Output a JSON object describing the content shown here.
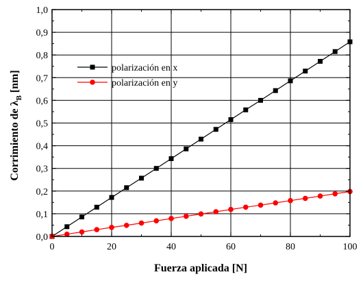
{
  "chart_data": {
    "type": "line",
    "title": "",
    "xlabel": "Fuerza aplicada [N]",
    "ylabel_main": "Corrimiento de λ",
    "ylabel_sub": "B",
    "ylabel_unit": " [nm]",
    "xlim": [
      0,
      100
    ],
    "ylim": [
      0,
      1.0
    ],
    "x_ticks": [
      0,
      20,
      40,
      60,
      80,
      100
    ],
    "x_tick_labels": [
      "0",
      "20",
      "40",
      "60",
      "80",
      "100"
    ],
    "y_ticks": [
      0,
      0.1,
      0.2,
      0.3,
      0.4,
      0.5,
      0.6,
      0.7,
      0.8,
      0.9,
      1.0
    ],
    "y_tick_labels": [
      "0,0",
      "0,1",
      "0,2",
      "0,3",
      "0,4",
      "0,5",
      "0,6",
      "0,7",
      "0,8",
      "0,9",
      "1,0"
    ],
    "grid": true,
    "legend_position": "upper-left",
    "x": [
      0,
      5,
      10,
      15,
      20,
      25,
      30,
      35,
      40,
      45,
      50,
      55,
      60,
      65,
      70,
      75,
      80,
      85,
      90,
      95,
      100
    ],
    "series": [
      {
        "name": "polarización en x",
        "color": "#000000",
        "marker": "square",
        "values": [
          0.0,
          0.043,
          0.086,
          0.129,
          0.172,
          0.215,
          0.257,
          0.3,
          0.343,
          0.386,
          0.429,
          0.472,
          0.515,
          0.558,
          0.6,
          0.643,
          0.686,
          0.729,
          0.772,
          0.815,
          0.858
        ]
      },
      {
        "name": "polarización en y",
        "color": "#ff0000",
        "marker": "circle",
        "values": [
          0.0,
          0.01,
          0.02,
          0.03,
          0.04,
          0.049,
          0.059,
          0.069,
          0.079,
          0.089,
          0.099,
          0.109,
          0.119,
          0.129,
          0.138,
          0.148,
          0.158,
          0.168,
          0.178,
          0.188,
          0.198
        ]
      }
    ]
  }
}
